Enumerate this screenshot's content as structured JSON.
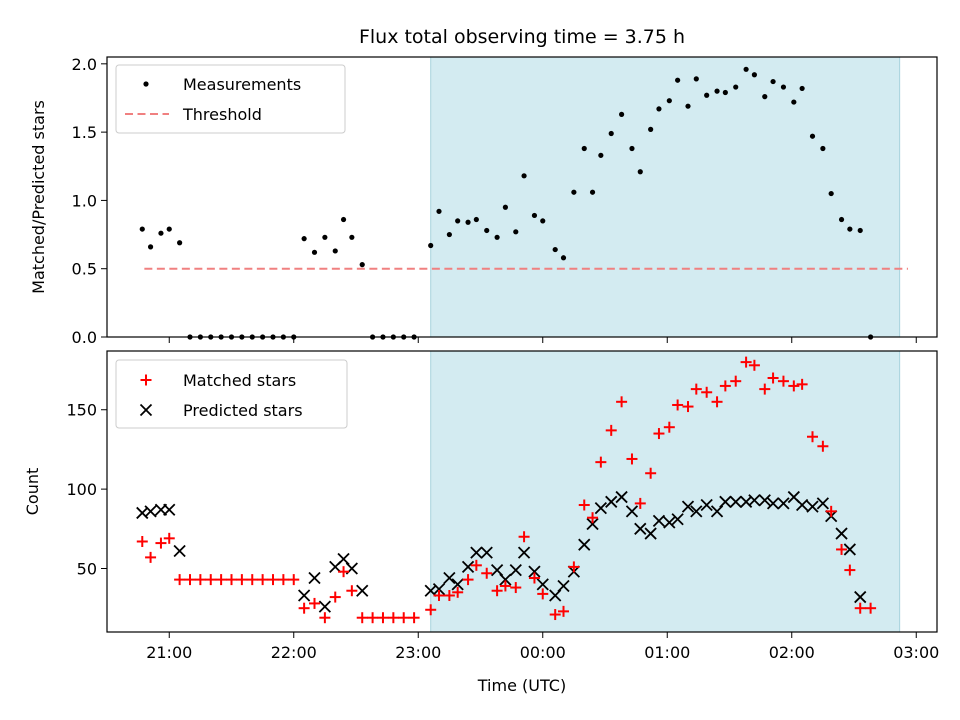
{
  "chart_data": [
    {
      "type": "scatter",
      "title": "Flux total observing time = 3.75 h",
      "xlabel": "",
      "ylabel": "Matched/Predicted stars",
      "xlim": [
        "20:30",
        "03:10"
      ],
      "ylim": [
        0,
        2.05
      ],
      "yticks": [
        0.0,
        0.5,
        1.0,
        1.5,
        2.0
      ],
      "ytick_labels": [
        "0.0",
        "0.5",
        "1.0",
        "1.5",
        "2.0"
      ],
      "shaded_region": {
        "from": "23:06",
        "to": "02:52",
        "color": "#d3ebf1"
      },
      "threshold": {
        "name": "Threshold",
        "y": 0.5,
        "from": "20:48",
        "to": "02:56",
        "color": "#f08080"
      },
      "legend": {
        "placement": "top-left",
        "entries": [
          "Measurements",
          "Threshold"
        ]
      },
      "series": [
        {
          "name": "Measurements",
          "marker": "dot",
          "color": "#000000",
          "points": [
            [
              "20:47",
              0.79
            ],
            [
              "20:51",
              0.66
            ],
            [
              "20:56",
              0.76
            ],
            [
              "21:00",
              0.79
            ],
            [
              "21:05",
              0.69
            ],
            [
              "21:10",
              0.0
            ],
            [
              "21:15",
              0.0
            ],
            [
              "21:20",
              0.0
            ],
            [
              "21:25",
              0.0
            ],
            [
              "21:30",
              0.0
            ],
            [
              "21:35",
              0.0
            ],
            [
              "21:40",
              0.0
            ],
            [
              "21:45",
              0.0
            ],
            [
              "21:50",
              0.0
            ],
            [
              "21:55",
              0.0
            ],
            [
              "22:00",
              0.0
            ],
            [
              "22:05",
              0.72
            ],
            [
              "22:10",
              0.62
            ],
            [
              "22:15",
              0.73
            ],
            [
              "22:20",
              0.63
            ],
            [
              "22:24",
              0.86
            ],
            [
              "22:28",
              0.73
            ],
            [
              "22:33",
              0.53
            ],
            [
              "22:38",
              0.0
            ],
            [
              "22:43",
              0.0
            ],
            [
              "22:48",
              0.0
            ],
            [
              "22:53",
              0.0
            ],
            [
              "22:58",
              0.0
            ],
            [
              "23:06",
              0.67
            ],
            [
              "23:10",
              0.92
            ],
            [
              "23:15",
              0.75
            ],
            [
              "23:19",
              0.85
            ],
            [
              "23:24",
              0.84
            ],
            [
              "23:28",
              0.86
            ],
            [
              "23:33",
              0.78
            ],
            [
              "23:38",
              0.73
            ],
            [
              "23:42",
              0.95
            ],
            [
              "23:47",
              0.77
            ],
            [
              "23:51",
              1.18
            ],
            [
              "23:56",
              0.89
            ],
            [
              "24:00",
              0.85
            ],
            [
              "24:06",
              0.64
            ],
            [
              "24:10",
              0.58
            ],
            [
              "24:15",
              1.06
            ],
            [
              "24:20",
              1.38
            ],
            [
              "24:24",
              1.06
            ],
            [
              "24:28",
              1.33
            ],
            [
              "24:33",
              1.49
            ],
            [
              "24:38",
              1.63
            ],
            [
              "24:43",
              1.38
            ],
            [
              "24:47",
              1.21
            ],
            [
              "24:52",
              1.52
            ],
            [
              "24:56",
              1.67
            ],
            [
              "25:01",
              1.73
            ],
            [
              "25:05",
              1.88
            ],
            [
              "25:10",
              1.69
            ],
            [
              "25:14",
              1.89
            ],
            [
              "25:19",
              1.77
            ],
            [
              "25:24",
              1.8
            ],
            [
              "25:28",
              1.79
            ],
            [
              "25:33",
              1.83
            ],
            [
              "25:38",
              1.96
            ],
            [
              "25:42",
              1.92
            ],
            [
              "25:47",
              1.76
            ],
            [
              "25:51",
              1.87
            ],
            [
              "25:56",
              1.83
            ],
            [
              "26:01",
              1.72
            ],
            [
              "26:05",
              1.82
            ],
            [
              "26:10",
              1.47
            ],
            [
              "26:15",
              1.38
            ],
            [
              "26:19",
              1.05
            ],
            [
              "26:24",
              0.86
            ],
            [
              "26:28",
              0.79
            ],
            [
              "26:33",
              0.78
            ],
            [
              "26:38",
              0.0
            ]
          ]
        }
      ]
    },
    {
      "type": "scatter",
      "title": "",
      "xlabel": "Time (UTC)",
      "ylabel": "Count",
      "xlim": [
        "20:30",
        "03:10"
      ],
      "ylim": [
        10,
        187
      ],
      "yticks": [
        50,
        100,
        150
      ],
      "ytick_labels": [
        "50",
        "100",
        "150"
      ],
      "xticks": [
        "21:00",
        "22:00",
        "23:00",
        "00:00",
        "01:00",
        "02:00",
        "03:00"
      ],
      "shaded_region": {
        "from": "23:06",
        "to": "02:52",
        "color": "#d3ebf1"
      },
      "legend": {
        "placement": "top-left",
        "entries": [
          "Matched stars",
          "Predicted stars"
        ]
      },
      "series": [
        {
          "name": "Matched stars",
          "marker": "plus",
          "color": "#ff0000",
          "points": [
            [
              "20:47",
              67
            ],
            [
              "20:51",
              57
            ],
            [
              "20:56",
              66
            ],
            [
              "21:00",
              69
            ],
            [
              "21:05",
              43
            ],
            [
              "21:10",
              43
            ],
            [
              "21:15",
              43
            ],
            [
              "21:20",
              43
            ],
            [
              "21:25",
              43
            ],
            [
              "21:30",
              43
            ],
            [
              "21:35",
              43
            ],
            [
              "21:40",
              43
            ],
            [
              "21:45",
              43
            ],
            [
              "21:50",
              43
            ],
            [
              "21:55",
              43
            ],
            [
              "22:00",
              43
            ],
            [
              "22:05",
              25
            ],
            [
              "22:10",
              28
            ],
            [
              "22:15",
              19
            ],
            [
              "22:20",
              32
            ],
            [
              "22:24",
              48
            ],
            [
              "22:28",
              36
            ],
            [
              "22:33",
              19
            ],
            [
              "22:38",
              19
            ],
            [
              "22:43",
              19
            ],
            [
              "22:48",
              19
            ],
            [
              "22:53",
              19
            ],
            [
              "22:58",
              19
            ],
            [
              "23:06",
              24
            ],
            [
              "23:10",
              33
            ],
            [
              "23:15",
              33
            ],
            [
              "23:19",
              35
            ],
            [
              "23:24",
              43
            ],
            [
              "23:28",
              52
            ],
            [
              "23:33",
              47
            ],
            [
              "23:38",
              36
            ],
            [
              "23:42",
              39
            ],
            [
              "23:47",
              38
            ],
            [
              "23:51",
              70
            ],
            [
              "23:56",
              44
            ],
            [
              "24:00",
              34
            ],
            [
              "24:06",
              21
            ],
            [
              "24:10",
              23
            ],
            [
              "24:15",
              51
            ],
            [
              "24:20",
              90
            ],
            [
              "24:24",
              82
            ],
            [
              "24:28",
              117
            ],
            [
              "24:33",
              137
            ],
            [
              "24:38",
              155
            ],
            [
              "24:43",
              119
            ],
            [
              "24:47",
              91
            ],
            [
              "24:52",
              110
            ],
            [
              "24:56",
              135
            ],
            [
              "25:01",
              139
            ],
            [
              "25:05",
              153
            ],
            [
              "25:10",
              152
            ],
            [
              "25:14",
              163
            ],
            [
              "25:19",
              161
            ],
            [
              "25:24",
              155
            ],
            [
              "25:28",
              165
            ],
            [
              "25:33",
              168
            ],
            [
              "25:38",
              180
            ],
            [
              "25:42",
              178
            ],
            [
              "25:47",
              163
            ],
            [
              "25:51",
              170
            ],
            [
              "25:56",
              168
            ],
            [
              "26:01",
              165
            ],
            [
              "26:05",
              166
            ],
            [
              "26:10",
              133
            ],
            [
              "26:15",
              127
            ],
            [
              "26:19",
              86
            ],
            [
              "26:24",
              62
            ],
            [
              "26:28",
              49
            ],
            [
              "26:33",
              25
            ],
            [
              "26:38",
              25
            ]
          ]
        },
        {
          "name": "Predicted stars",
          "marker": "x",
          "color": "#000000",
          "points": [
            [
              "20:47",
              85
            ],
            [
              "20:51",
              86
            ],
            [
              "20:56",
              87
            ],
            [
              "21:00",
              87
            ],
            [
              "21:05",
              61
            ],
            [
              "22:05",
              33
            ],
            [
              "22:10",
              44
            ],
            [
              "22:15",
              26
            ],
            [
              "22:20",
              51
            ],
            [
              "22:24",
              56
            ],
            [
              "22:28",
              50
            ],
            [
              "22:33",
              36
            ],
            [
              "23:06",
              36
            ],
            [
              "23:10",
              37
            ],
            [
              "23:15",
              44
            ],
            [
              "23:19",
              40
            ],
            [
              "23:24",
              51
            ],
            [
              "23:28",
              60
            ],
            [
              "23:33",
              60
            ],
            [
              "23:38",
              49
            ],
            [
              "23:42",
              43
            ],
            [
              "23:47",
              49
            ],
            [
              "23:51",
              60
            ],
            [
              "23:56",
              48
            ],
            [
              "24:00",
              40
            ],
            [
              "24:06",
              33
            ],
            [
              "24:10",
              39
            ],
            [
              "24:15",
              48
            ],
            [
              "24:20",
              65
            ],
            [
              "24:24",
              78
            ],
            [
              "24:28",
              88
            ],
            [
              "24:33",
              92
            ],
            [
              "24:38",
              95
            ],
            [
              "24:43",
              86
            ],
            [
              "24:47",
              75
            ],
            [
              "24:52",
              72
            ],
            [
              "24:56",
              80
            ],
            [
              "25:01",
              79
            ],
            [
              "25:05",
              81
            ],
            [
              "25:10",
              89
            ],
            [
              "25:14",
              86
            ],
            [
              "25:19",
              90
            ],
            [
              "25:24",
              86
            ],
            [
              "25:28",
              92
            ],
            [
              "25:33",
              92
            ],
            [
              "25:38",
              92
            ],
            [
              "25:42",
              93
            ],
            [
              "25:47",
              93
            ],
            [
              "25:51",
              91
            ],
            [
              "25:56",
              91
            ],
            [
              "26:01",
              95
            ],
            [
              "26:05",
              90
            ],
            [
              "26:10",
              89
            ],
            [
              "26:15",
              91
            ],
            [
              "26:19",
              83
            ],
            [
              "26:24",
              72
            ],
            [
              "26:28",
              62
            ],
            [
              "26:33",
              32
            ]
          ]
        }
      ]
    }
  ]
}
